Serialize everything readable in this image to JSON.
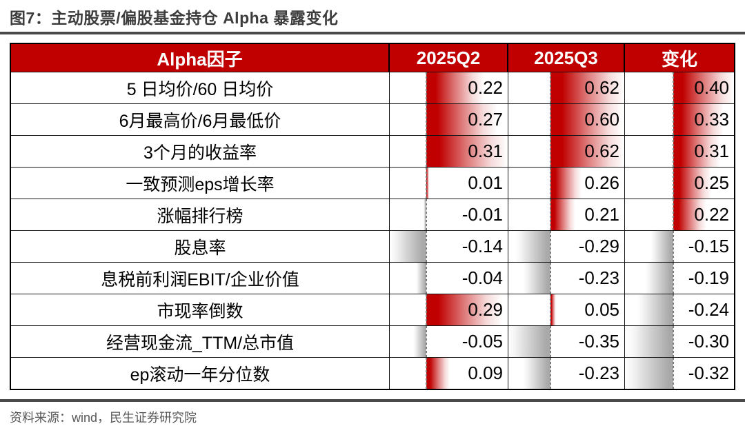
{
  "title": "图7：主动股票/偏股基金持仓 Alpha 暴露变化",
  "source": "资料来源：wind，民生证券研究院",
  "colors": {
    "header_bg": "#C00000",
    "positive_bar": "#C00000",
    "negative_bar": "#A9A9A9",
    "title_text": "#3D3D3D",
    "source_text": "#595959",
    "divider": "#4A4A4A",
    "table_border": "#000000"
  },
  "chart_data": {
    "type": "table",
    "title": "图7：主动股票/偏股基金持仓 Alpha 暴露变化",
    "columns": [
      "Alpha因子",
      "2025Q2",
      "2025Q3",
      "变化"
    ],
    "rows": [
      {
        "factor": "5 日均价/60 日均价",
        "values": [
          0.22,
          0.62,
          0.4
        ]
      },
      {
        "factor": "6月最高价/6月最低价",
        "values": [
          0.27,
          0.6,
          0.33
        ]
      },
      {
        "factor": "3个月的收益率",
        "values": [
          0.31,
          0.62,
          0.31
        ]
      },
      {
        "factor": "一致预测eps增长率",
        "values": [
          0.01,
          0.26,
          0.25
        ]
      },
      {
        "factor": "涨幅排行榜",
        "values": [
          -0.01,
          0.21,
          0.22
        ]
      },
      {
        "factor": "股息率",
        "values": [
          -0.14,
          -0.29,
          -0.15
        ]
      },
      {
        "factor": "息税前利润EBIT/企业价值",
        "values": [
          -0.04,
          -0.23,
          -0.19
        ]
      },
      {
        "factor": "市现率倒数",
        "values": [
          0.29,
          0.05,
          -0.24
        ]
      },
      {
        "factor": "经营现金流_TTM/总市值",
        "values": [
          -0.05,
          -0.35,
          -0.3
        ]
      },
      {
        "factor": "ep滚动一年分位数",
        "values": [
          0.09,
          -0.23,
          -0.32
        ]
      }
    ],
    "layout": {
      "bar_style": "gradient-databar",
      "bar_scaling": "per-column min-max",
      "zero_axis": "dashed vertical line per column",
      "value_format": "2 decimals, right-aligned",
      "grid": true,
      "legend": false
    }
  }
}
